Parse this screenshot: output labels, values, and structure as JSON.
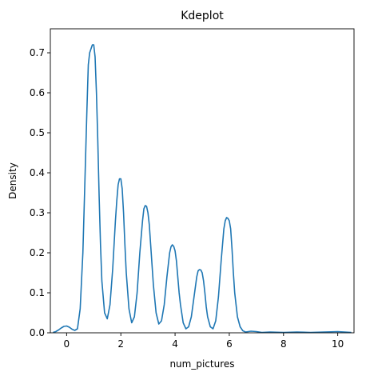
{
  "chart_data": {
    "type": "line",
    "title": "Kdeplot",
    "xlabel": "num_pictures",
    "ylabel": "Density",
    "xlim": [
      -0.6,
      10.6
    ],
    "ylim": [
      0,
      0.76
    ],
    "xticks": [
      0,
      2,
      4,
      6,
      8,
      10
    ],
    "yticks": [
      0.0,
      0.1,
      0.2,
      0.3,
      0.4,
      0.5,
      0.6,
      0.7
    ],
    "ytick_labels": [
      "0.0",
      "0.1",
      "0.2",
      "0.3",
      "0.4",
      "0.5",
      "0.6",
      "0.7"
    ],
    "grid": false,
    "color": "#1f77b4",
    "series": [
      {
        "x": [
          -0.5,
          -0.4,
          -0.3,
          -0.2,
          -0.1,
          0.0,
          0.1,
          0.2,
          0.3,
          0.4,
          0.5,
          0.6,
          0.7,
          0.75,
          0.8,
          0.85,
          0.9,
          0.95,
          1.0,
          1.05,
          1.1,
          1.15,
          1.2,
          1.25,
          1.3,
          1.4,
          1.5,
          1.6,
          1.7,
          1.8,
          1.85,
          1.9,
          1.95,
          2.0,
          2.05,
          2.1,
          2.15,
          2.2,
          2.3,
          2.4,
          2.5,
          2.6,
          2.7,
          2.8,
          2.85,
          2.9,
          2.95,
          3.0,
          3.05,
          3.1,
          3.15,
          3.2,
          3.3,
          3.4,
          3.5,
          3.6,
          3.7,
          3.8,
          3.85,
          3.9,
          3.95,
          4.0,
          4.05,
          4.1,
          4.15,
          4.2,
          4.3,
          4.4,
          4.5,
          4.6,
          4.7,
          4.8,
          4.85,
          4.9,
          4.95,
          5.0,
          5.05,
          5.1,
          5.15,
          5.2,
          5.3,
          5.4,
          5.5,
          5.6,
          5.7,
          5.8,
          5.85,
          5.9,
          5.95,
          6.0,
          6.05,
          6.1,
          6.15,
          6.2,
          6.3,
          6.4,
          6.5,
          6.6,
          6.7,
          6.8,
          7.0,
          7.2,
          7.5,
          8.0,
          8.5,
          9.0,
          9.5,
          10.0,
          10.5
        ],
        "y": [
          0.001,
          0.003,
          0.007,
          0.012,
          0.016,
          0.017,
          0.014,
          0.009,
          0.006,
          0.01,
          0.06,
          0.2,
          0.44,
          0.56,
          0.67,
          0.7,
          0.71,
          0.72,
          0.72,
          0.69,
          0.6,
          0.48,
          0.34,
          0.22,
          0.13,
          0.05,
          0.035,
          0.07,
          0.16,
          0.28,
          0.33,
          0.37,
          0.385,
          0.385,
          0.36,
          0.3,
          0.22,
          0.15,
          0.06,
          0.025,
          0.04,
          0.1,
          0.2,
          0.28,
          0.31,
          0.318,
          0.316,
          0.3,
          0.27,
          0.22,
          0.17,
          0.12,
          0.05,
          0.022,
          0.03,
          0.07,
          0.14,
          0.2,
          0.215,
          0.22,
          0.216,
          0.205,
          0.18,
          0.14,
          0.1,
          0.07,
          0.025,
          0.01,
          0.015,
          0.04,
          0.09,
          0.14,
          0.155,
          0.158,
          0.157,
          0.15,
          0.13,
          0.1,
          0.065,
          0.04,
          0.015,
          0.01,
          0.03,
          0.09,
          0.18,
          0.26,
          0.28,
          0.288,
          0.286,
          0.28,
          0.26,
          0.21,
          0.15,
          0.1,
          0.04,
          0.015,
          0.005,
          0.002,
          0.003,
          0.004,
          0.003,
          0.001,
          0.002,
          0.001,
          0.002,
          0.001,
          0.002,
          0.003,
          0.001
        ]
      }
    ]
  }
}
